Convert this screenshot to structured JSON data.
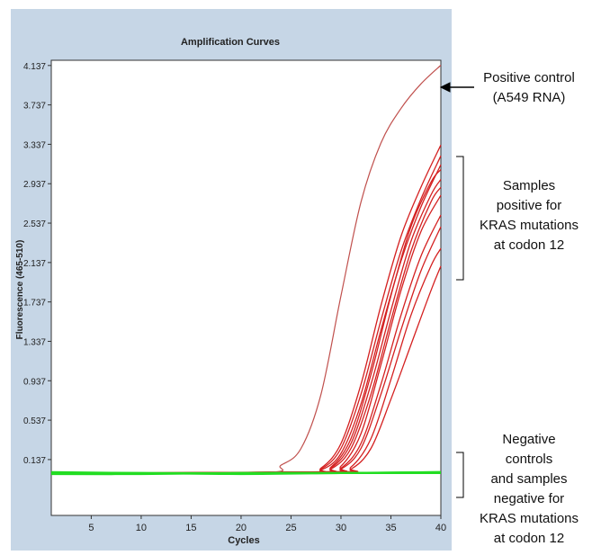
{
  "chart_data": {
    "type": "line",
    "title": "Amplification Curves",
    "xlabel": "Cycles",
    "ylabel": "Fluorescence (465-510)",
    "xlim": [
      1,
      40
    ],
    "ylim": [
      -0.43,
      4.19
    ],
    "xticks": [
      5,
      10,
      15,
      20,
      25,
      30,
      35,
      40
    ],
    "yticks": [
      0.137,
      0.537,
      0.937,
      1.337,
      1.737,
      2.137,
      2.537,
      2.937,
      3.337,
      3.737,
      4.137
    ],
    "ytick_labels": [
      "0.137",
      "0.537",
      "0.937",
      "1.337",
      "1.737",
      "2.137",
      "2.537",
      "2.937",
      "3.337",
      "3.737",
      "4.137"
    ],
    "grid": false,
    "colors": {
      "positive_control": "#c0504d",
      "samples": "#d42020",
      "negative": "#22dd22",
      "background": "#c6d6e6"
    },
    "series": [
      {
        "group": "positive-control",
        "x": [
          1,
          22,
          24,
          26,
          28,
          30,
          32,
          34,
          36,
          38,
          40
        ],
        "y": [
          0,
          0.005,
          0.08,
          0.25,
          0.8,
          1.8,
          2.75,
          3.35,
          3.7,
          3.95,
          4.14
        ]
      },
      {
        "group": "sample",
        "x": [
          1,
          26,
          28,
          30,
          32,
          34,
          36,
          38,
          40
        ],
        "y": [
          0,
          0.01,
          0.05,
          0.3,
          0.9,
          1.7,
          2.4,
          2.9,
          3.33
        ]
      },
      {
        "group": "sample",
        "x": [
          1,
          26,
          28,
          30,
          32,
          34,
          36,
          38,
          40
        ],
        "y": [
          0,
          0.01,
          0.04,
          0.25,
          0.8,
          1.55,
          2.25,
          2.78,
          3.22
        ]
      },
      {
        "group": "sample",
        "x": [
          1,
          26,
          28,
          30,
          32,
          34,
          36,
          38,
          40
        ],
        "y": [
          0,
          0.01,
          0.03,
          0.2,
          0.7,
          1.45,
          2.15,
          2.7,
          3.13
        ]
      },
      {
        "group": "sample",
        "x": [
          1,
          27,
          29,
          31,
          33,
          35,
          37,
          39,
          40
        ],
        "y": [
          0,
          0.01,
          0.06,
          0.35,
          1.0,
          1.8,
          2.5,
          2.95,
          3.08
        ]
      },
      {
        "group": "sample",
        "x": [
          1,
          27,
          29,
          31,
          33,
          35,
          37,
          39,
          40
        ],
        "y": [
          0,
          0.01,
          0.05,
          0.3,
          0.9,
          1.65,
          2.35,
          2.82,
          2.98
        ]
      },
      {
        "group": "sample",
        "x": [
          1,
          27,
          29,
          31,
          33,
          35,
          37,
          39,
          40
        ],
        "y": [
          0,
          0.01,
          0.04,
          0.25,
          0.8,
          1.55,
          2.25,
          2.75,
          2.9
        ]
      },
      {
        "group": "sample",
        "x": [
          1,
          28,
          30,
          32,
          34,
          36,
          38,
          40
        ],
        "y": [
          0,
          0.01,
          0.07,
          0.4,
          1.1,
          1.85,
          2.45,
          2.82
        ]
      },
      {
        "group": "sample",
        "x": [
          1,
          28,
          30,
          32,
          34,
          36,
          38,
          40
        ],
        "y": [
          0,
          0.01,
          0.05,
          0.3,
          0.9,
          1.6,
          2.2,
          2.62
        ]
      },
      {
        "group": "sample",
        "x": [
          1,
          28,
          30,
          32,
          34,
          36,
          38,
          40
        ],
        "y": [
          0,
          0.01,
          0.04,
          0.25,
          0.8,
          1.45,
          2.05,
          2.5
        ]
      },
      {
        "group": "sample",
        "x": [
          1,
          29,
          31,
          33,
          35,
          37,
          39,
          40
        ],
        "y": [
          0,
          0.01,
          0.06,
          0.35,
          0.95,
          1.6,
          2.1,
          2.28
        ]
      },
      {
        "group": "sample",
        "x": [
          1,
          29,
          31,
          33,
          35,
          37,
          39,
          40
        ],
        "y": [
          0,
          0.01,
          0.04,
          0.25,
          0.75,
          1.3,
          1.85,
          2.1
        ]
      },
      {
        "group": "negative",
        "x": [
          1,
          10,
          20,
          30,
          40
        ],
        "y": [
          0.0,
          0.0,
          -0.01,
          0.0,
          0.01
        ]
      },
      {
        "group": "negative",
        "x": [
          1,
          10,
          20,
          30,
          40
        ],
        "y": [
          0.01,
          0.0,
          0.0,
          0.0,
          0.0
        ]
      },
      {
        "group": "negative",
        "x": [
          1,
          10,
          20,
          30,
          40
        ],
        "y": [
          -0.01,
          -0.01,
          0.0,
          0.0,
          0.01
        ]
      }
    ]
  },
  "annotations": {
    "positive": [
      "Positive control",
      "(A549 RNA)"
    ],
    "samples": [
      "Samples",
      "positive for",
      "KRAS mutations",
      "at codon 12"
    ],
    "negative": [
      "Negative",
      "controls",
      "and samples",
      "negative for",
      "KRAS mutations",
      "at codon 12"
    ]
  }
}
